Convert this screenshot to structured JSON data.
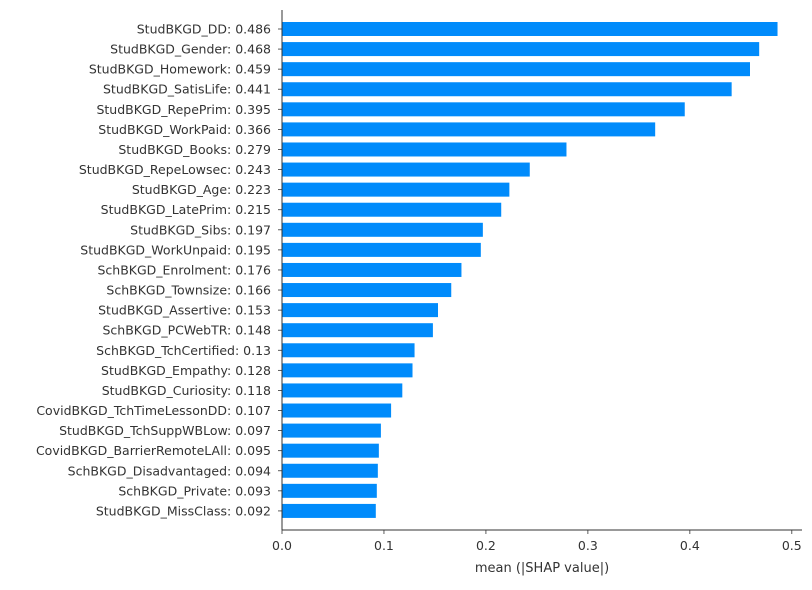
{
  "chart_data": {
    "type": "bar",
    "orientation": "horizontal",
    "categories": [
      "StudBKGD_DD: 0.486",
      "StudBKGD_Gender: 0.468",
      "StudBKGD_Homework: 0.459",
      "StudBKGD_SatisLife: 0.441",
      "StudBKGD_RepePrim: 0.395",
      "StudBKGD_WorkPaid: 0.366",
      "StudBKGD_Books: 0.279",
      "StudBKGD_RepeLowsec: 0.243",
      "StudBKGD_Age: 0.223",
      "StudBKGD_LatePrim: 0.215",
      "StudBKGD_Sibs: 0.197",
      "StudBKGD_WorkUnpaid: 0.195",
      "SchBKGD_Enrolment: 0.176",
      "SchBKGD_Townsize: 0.166",
      "StudBKGD_Assertive: 0.153",
      "SchBKGD_PCWebTR: 0.148",
      "SchBKGD_TchCertified: 0.13",
      "StudBKGD_Empathy: 0.128",
      "StudBKGD_Curiosity: 0.118",
      "CovidBKGD_TchTimeLessonDD: 0.107",
      "StudBKGD_TchSuppWBLow: 0.097",
      "CovidBKGD_BarrierRemoteLAll: 0.095",
      "SchBKGD_Disadvantaged: 0.094",
      "SchBKGD_Private: 0.093",
      "StudBKGD_MissClass: 0.092"
    ],
    "values": [
      0.486,
      0.468,
      0.459,
      0.441,
      0.395,
      0.366,
      0.279,
      0.243,
      0.223,
      0.215,
      0.197,
      0.195,
      0.176,
      0.166,
      0.153,
      0.148,
      0.13,
      0.128,
      0.118,
      0.107,
      0.097,
      0.095,
      0.094,
      0.093,
      0.092
    ],
    "xlabel": "mean (|SHAP value|)",
    "ylabel": "",
    "title": "",
    "xlim": [
      0,
      0.51
    ],
    "xticks": [
      "0.0",
      "0.1",
      "0.2",
      "0.3",
      "0.4",
      "0.5"
    ],
    "grid": false,
    "bar_color": "#008bfb"
  }
}
